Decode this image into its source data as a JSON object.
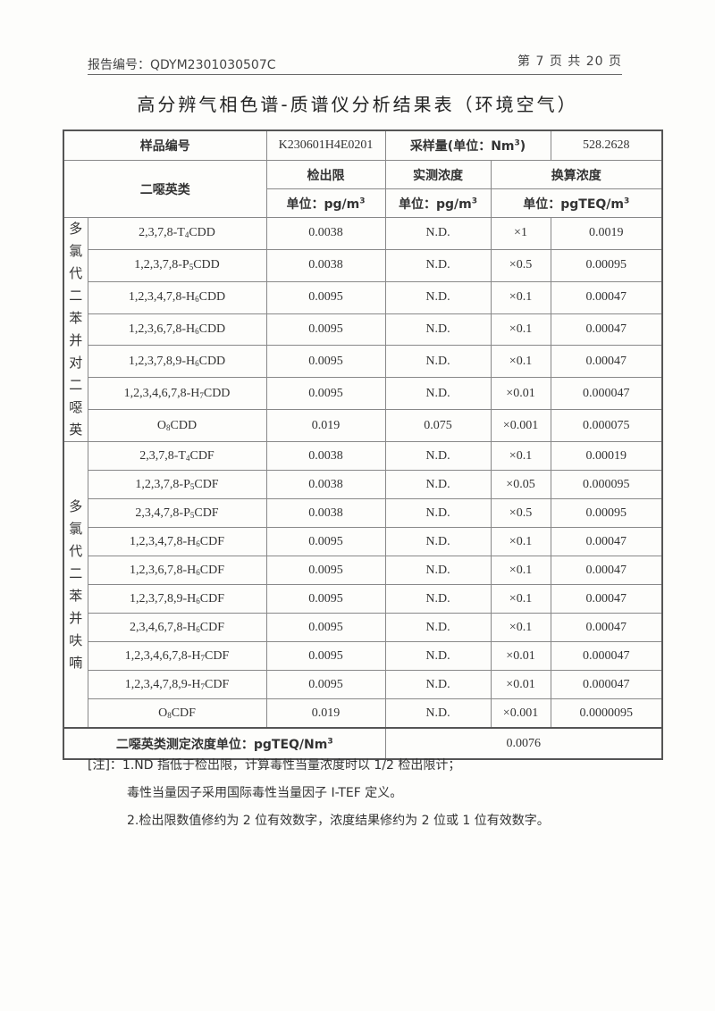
{
  "header": {
    "report_no": "报告编号：QDYM2301030507C",
    "page": "第 7 页 共 20 页"
  },
  "title": "高分辨气相色谱-质谱仪分析结果表（环境空气）",
  "table": {
    "sample_label": "样品编号",
    "sample_id": "K230601H4E0201",
    "volume_label": "采样量(单位：Nm",
    "volume_sup": "3",
    "volume_close": ")",
    "volume_value": "528.2628",
    "compound_col": "二噁英类",
    "lod_col": "检出限",
    "measured_col": "实测浓度",
    "converted_col": "换算浓度",
    "lod_unit": "单位：pg/m",
    "measured_unit": "单位：pg/m",
    "converted_unit": "单位：pgTEQ/m",
    "unit_sup": "3",
    "groups": [
      {
        "label": "多氯代二苯并对二噁英",
        "rows": [
          {
            "pre": "2,3,7,8-T",
            "sub": "4",
            "post": "CDD",
            "lod": "0.0038",
            "measured": "N.D.",
            "tef": "×1",
            "teq": "0.0019"
          },
          {
            "pre": "1,2,3,7,8-P",
            "sub": "5",
            "post": "CDD",
            "lod": "0.0038",
            "measured": "N.D.",
            "tef": "×0.5",
            "teq": "0.00095"
          },
          {
            "pre": "1,2,3,4,7,8-H",
            "sub": "6",
            "post": "CDD",
            "lod": "0.0095",
            "measured": "N.D.",
            "tef": "×0.1",
            "teq": "0.00047"
          },
          {
            "pre": "1,2,3,6,7,8-H",
            "sub": "6",
            "post": "CDD",
            "lod": "0.0095",
            "measured": "N.D.",
            "tef": "×0.1",
            "teq": "0.00047"
          },
          {
            "pre": "1,2,3,7,8,9-H",
            "sub": "6",
            "post": "CDD",
            "lod": "0.0095",
            "measured": "N.D.",
            "tef": "×0.1",
            "teq": "0.00047"
          },
          {
            "pre": "1,2,3,4,6,7,8-H",
            "sub": "7",
            "post": "CDD",
            "lod": "0.0095",
            "measured": "N.D.",
            "tef": "×0.01",
            "teq": "0.000047"
          },
          {
            "pre": "O",
            "sub": "8",
            "post": "CDD",
            "lod": "0.019",
            "measured": "0.075",
            "tef": "×0.001",
            "teq": "0.000075"
          }
        ]
      },
      {
        "label": "多氯代二苯并呋喃",
        "rows": [
          {
            "pre": "2,3,7,8-T",
            "sub": "4",
            "post": "CDF",
            "lod": "0.0038",
            "measured": "N.D.",
            "tef": "×0.1",
            "teq": "0.00019"
          },
          {
            "pre": "1,2,3,7,8-P",
            "sub": "5",
            "post": "CDF",
            "lod": "0.0038",
            "measured": "N.D.",
            "tef": "×0.05",
            "teq": "0.000095"
          },
          {
            "pre": "2,3,4,7,8-P",
            "sub": "5",
            "post": "CDF",
            "lod": "0.0038",
            "measured": "N.D.",
            "tef": "×0.5",
            "teq": "0.00095"
          },
          {
            "pre": "1,2,3,4,7,8-H",
            "sub": "6",
            "post": "CDF",
            "lod": "0.0095",
            "measured": "N.D.",
            "tef": "×0.1",
            "teq": "0.00047"
          },
          {
            "pre": "1,2,3,6,7,8-H",
            "sub": "6",
            "post": "CDF",
            "lod": "0.0095",
            "measured": "N.D.",
            "tef": "×0.1",
            "teq": "0.00047"
          },
          {
            "pre": "1,2,3,7,8,9-H",
            "sub": "6",
            "post": "CDF",
            "lod": "0.0095",
            "measured": "N.D.",
            "tef": "×0.1",
            "teq": "0.00047"
          },
          {
            "pre": "2,3,4,6,7,8-H",
            "sub": "6",
            "post": "CDF",
            "lod": "0.0095",
            "measured": "N.D.",
            "tef": "×0.1",
            "teq": "0.00047"
          },
          {
            "pre": "1,2,3,4,6,7,8-H",
            "sub": "7",
            "post": "CDF",
            "lod": "0.0095",
            "measured": "N.D.",
            "tef": "×0.01",
            "teq": "0.000047"
          },
          {
            "pre": "1,2,3,4,7,8,9-H",
            "sub": "7",
            "post": "CDF",
            "lod": "0.0095",
            "measured": "N.D.",
            "tef": "×0.01",
            "teq": "0.000047"
          },
          {
            "pre": "O",
            "sub": "8",
            "post": "CDF",
            "lod": "0.019",
            "measured": "N.D.",
            "tef": "×0.001",
            "teq": "0.0000095"
          }
        ]
      }
    ],
    "total_label": "二噁英类测定浓度单位：pgTEQ/Nm",
    "total_sup": "3",
    "total_value": "0.0076"
  },
  "notes": [
    "[注]：1.ND 指低于检出限，计算毒性当量浓度时以 1/2 检出限计；",
    "毒性当量因子采用国际毒性当量因子 I-TEF 定义。",
    "2.检出限数值修约为 2 位有效数字，浓度结果修约为 2 位或 1 位有效数字。"
  ]
}
